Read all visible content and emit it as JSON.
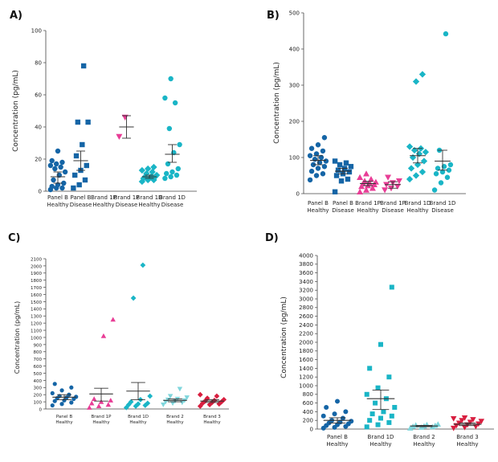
{
  "colors": {
    "panel_b": "#1565a6",
    "brand_1d": "#1ab5c6",
    "brand_1p": "#e83d96",
    "brand_2": "#7fd6dc",
    "brand_3": "#d81e3f",
    "error_bar": "#333333"
  },
  "chart_data": [
    {
      "type": "scatter",
      "panel": "A)",
      "ylabel": "Concentration (pg/mL)",
      "ylim": [
        0,
        100
      ],
      "yticks": [
        0,
        20,
        40,
        60,
        80,
        100
      ],
      "categories": [
        {
          "line1": "Panel B",
          "line2": "Healthy",
          "color": "#1565a6",
          "marker": "circle",
          "mean": 9,
          "err_low": 5,
          "err_high": 12,
          "values": [
            1,
            2,
            2,
            3,
            4,
            5,
            7,
            10,
            12,
            14,
            15,
            16,
            17,
            18,
            19,
            25
          ]
        },
        {
          "line1": "Panel B",
          "line2": "Disease",
          "color": "#1565a6",
          "marker": "square",
          "mean": 19,
          "err_low": 13,
          "err_high": 25,
          "values": [
            2,
            4,
            7,
            10,
            13,
            16,
            22,
            29,
            43,
            43,
            78
          ]
        },
        {
          "line1": "Brand 1P",
          "line2": "Healthy",
          "color": "#e83d96",
          "marker": "triangle",
          "values": []
        },
        {
          "line1": "Brand 1P",
          "line2": "Disease",
          "color": "#e83d96",
          "marker": "triangle-down",
          "mean": 40,
          "err_low": 33,
          "err_high": 47,
          "values": [
            34,
            46
          ]
        },
        {
          "line1": "Brand 1D",
          "line2": "Healthy",
          "color": "#1ab5c6",
          "marker": "diamond",
          "mean": 9,
          "err_low": 8,
          "err_high": 10,
          "values": [
            6,
            7,
            7,
            8,
            8,
            9,
            9,
            9,
            10,
            11,
            12,
            13,
            14,
            15
          ]
        },
        {
          "line1": "Brand 1D",
          "line2": "Disease",
          "color": "#1ab5c6",
          "marker": "circle",
          "mean": 23,
          "err_low": 18,
          "err_high": 29,
          "values": [
            8,
            9,
            10,
            11,
            12,
            14,
            17,
            24,
            29,
            39,
            55,
            58,
            70
          ]
        }
      ]
    },
    {
      "type": "scatter",
      "panel": "B)",
      "ylabel": "Concentration (pg/mL)",
      "ylim": [
        0,
        500
      ],
      "yticks": [
        0,
        100,
        200,
        300,
        400,
        500
      ],
      "categories": [
        {
          "line1": "Panel B",
          "line2": "Healthy",
          "color": "#1565a6",
          "marker": "circle",
          "mean": 92,
          "err_low": 80,
          "err_high": 105,
          "values": [
            38,
            50,
            55,
            62,
            70,
            75,
            80,
            86,
            90,
            95,
            100,
            105,
            110,
            118,
            125,
            135,
            155
          ]
        },
        {
          "line1": "Panel B",
          "line2": "Disease",
          "color": "#1565a6",
          "marker": "square",
          "mean": 62,
          "err_low": 55,
          "err_high": 70,
          "values": [
            5,
            35,
            40,
            50,
            55,
            60,
            65,
            70,
            75,
            80,
            85,
            90
          ]
        },
        {
          "line1": "Brand 1P",
          "line2": "Healthy",
          "color": "#e83d96",
          "marker": "triangle",
          "mean": 28,
          "err_low": 22,
          "err_high": 34,
          "values": [
            5,
            10,
            15,
            20,
            22,
            25,
            28,
            30,
            32,
            35,
            40,
            45,
            55
          ]
        },
        {
          "line1": "Brand 1P",
          "line2": "Disease",
          "color": "#e83d96",
          "marker": "triangle-down",
          "mean": 25,
          "err_low": 15,
          "err_high": 33,
          "values": [
            10,
            15,
            20,
            25,
            30,
            35,
            45
          ]
        },
        {
          "line1": "Brand 1D",
          "line2": "Healthy",
          "color": "#1ab5c6",
          "marker": "diamond",
          "mean": 105,
          "err_low": 85,
          "err_high": 125,
          "values": [
            40,
            50,
            60,
            70,
            80,
            90,
            100,
            110,
            115,
            120,
            125,
            130,
            310,
            330
          ]
        },
        {
          "line1": "Brand 1D",
          "line2": "Disease",
          "color": "#1ab5c6",
          "marker": "circle",
          "mean": 90,
          "err_low": 65,
          "err_high": 120,
          "values": [
            10,
            30,
            45,
            55,
            60,
            65,
            70,
            75,
            80,
            120,
            442
          ]
        }
      ]
    },
    {
      "type": "scatter",
      "panel": "C)",
      "ylabel": "Concentration (pg/mL)",
      "ylim": [
        0,
        2100
      ],
      "yticks": [
        0,
        100,
        200,
        300,
        400,
        500,
        600,
        700,
        800,
        900,
        1000,
        1100,
        1200,
        1300,
        1400,
        1500,
        1600,
        1700,
        1800,
        1900,
        2000,
        2100
      ],
      "categories": [
        {
          "line1": "Panel B",
          "line2": "Healthy",
          "color": "#1565a6",
          "marker": "circle",
          "mean": 165,
          "err_low": 130,
          "err_high": 200,
          "values": [
            50,
            70,
            90,
            110,
            120,
            140,
            150,
            160,
            170,
            180,
            200,
            220,
            260,
            300,
            350
          ]
        },
        {
          "line1": "Brand 1P",
          "line2": "Healthy",
          "color": "#e83d96",
          "marker": "triangle",
          "mean": 210,
          "err_low": 110,
          "err_high": 290,
          "values": [
            20,
            40,
            60,
            80,
            100,
            120,
            140,
            1020,
            1250
          ]
        },
        {
          "line1": "Brand 1D",
          "line2": "Healthy",
          "color": "#1ab5c6",
          "marker": "diamond",
          "mean": 250,
          "err_low": 130,
          "err_high": 370,
          "values": [
            20,
            40,
            50,
            60,
            70,
            80,
            100,
            130,
            180,
            1550,
            2010
          ]
        },
        {
          "line1": "Brand 2",
          "line2": "Healthy",
          "color": "#7fd6dc",
          "marker": "triangle-down",
          "mean": 120,
          "err_low": 100,
          "err_high": 140,
          "values": [
            60,
            80,
            90,
            100,
            110,
            120,
            130,
            140,
            160,
            180,
            280
          ]
        },
        {
          "line1": "Brand 3",
          "line2": "Healthy",
          "color": "#d81e3f",
          "marker": "diamond",
          "mean": 110,
          "err_low": 90,
          "err_high": 130,
          "values": [
            40,
            60,
            70,
            80,
            90,
            100,
            110,
            120,
            130,
            150,
            180,
            200
          ]
        }
      ]
    },
    {
      "type": "scatter",
      "panel": "D)",
      "ylabel": "Concentration (pg/mL)",
      "ylim": [
        0,
        4000
      ],
      "yticks": [
        0,
        200,
        400,
        600,
        800,
        1000,
        1200,
        1400,
        1600,
        1800,
        2000,
        2200,
        2400,
        2600,
        2800,
        3000,
        3200,
        3400,
        3600,
        3800,
        4000
      ],
      "categories": [
        {
          "line1": "Panel B",
          "line2": "Healthy",
          "color": "#1565a6",
          "marker": "circle",
          "mean": 200,
          "err_low": 140,
          "err_high": 260,
          "values": [
            20,
            40,
            60,
            80,
            100,
            120,
            140,
            160,
            180,
            200,
            250,
            300,
            350,
            400,
            500,
            640
          ]
        },
        {
          "line1": "Brand 1D",
          "line2": "Healthy",
          "color": "#1ab5c6",
          "marker": "square",
          "mean": 700,
          "err_low": 450,
          "err_high": 900,
          "values": [
            50,
            100,
            150,
            200,
            250,
            300,
            350,
            400,
            500,
            600,
            700,
            800,
            950,
            1200,
            1400,
            1950,
            3270
          ]
        },
        {
          "line1": "Brand 2",
          "line2": "Healthy",
          "color": "#7fd6dc",
          "marker": "triangle",
          "mean": 70,
          "err_low": 55,
          "err_high": 85,
          "values": [
            20,
            40,
            50,
            60,
            70,
            80,
            90,
            100,
            110
          ]
        },
        {
          "line1": "Brand 3",
          "line2": "Healthy",
          "color": "#d81e3f",
          "marker": "triangle-down",
          "mean": 110,
          "err_low": 80,
          "err_high": 140,
          "values": [
            20,
            40,
            60,
            80,
            100,
            120,
            140,
            160,
            180,
            200,
            220,
            240,
            260
          ]
        }
      ]
    }
  ]
}
